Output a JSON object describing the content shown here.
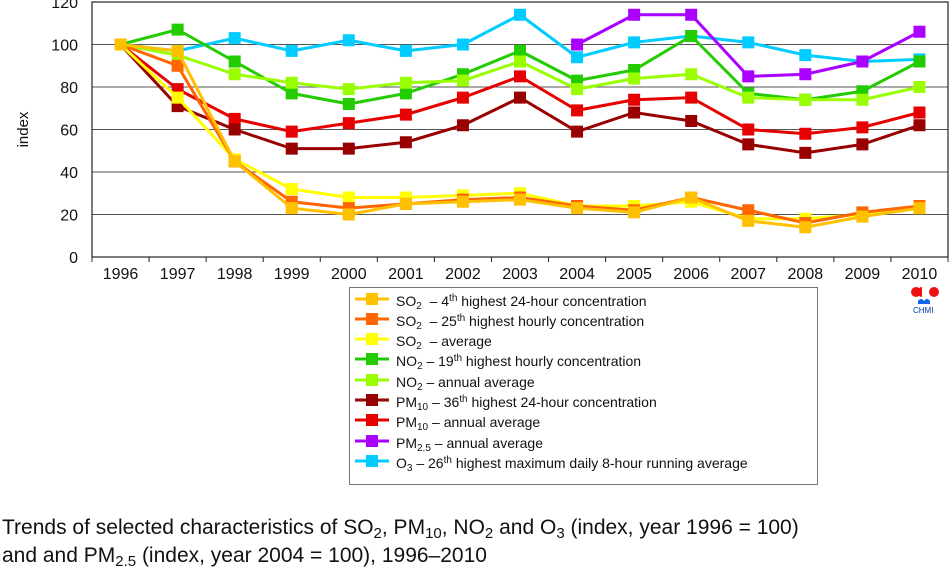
{
  "chart_data": {
    "type": "line",
    "ylabel": "index",
    "xlabel": "",
    "ylim": [
      0,
      120
    ],
    "yticks": [
      "0",
      "20",
      "40",
      "60",
      "80",
      "100",
      "120"
    ],
    "categories": [
      "1996",
      "1997",
      "1998",
      "1999",
      "2000",
      "2001",
      "2002",
      "2003",
      "2004",
      "2005",
      "2006",
      "2007",
      "2008",
      "2009",
      "2010"
    ],
    "grid": "horizontal",
    "legend_position": "bottom",
    "series": [
      {
        "name": "SO2 – 4th highest 24-hour concentration",
        "color": "#FFC000",
        "values": [
          100,
          97,
          45,
          23,
          20,
          25,
          26,
          27,
          23,
          21,
          28,
          17,
          14,
          19,
          23
        ],
        "label": {
          "f": "SO",
          "sub": "2",
          "a": "  – 4",
          "sup": "th",
          "b": " highest 24-hour concentration"
        }
      },
      {
        "name": "SO2 – 25th highest hourly concentration",
        "color": "#FF6600",
        "values": [
          100,
          90,
          45,
          26,
          23,
          25,
          27,
          28,
          24,
          22,
          28,
          22,
          16,
          21,
          24
        ],
        "label": {
          "f": "SO",
          "sub": "2",
          "a": "  – 25",
          "sup": "th",
          "b": " highest hourly concentration"
        }
      },
      {
        "name": "SO2 – average",
        "color": "#FFFF00",
        "values": [
          100,
          75,
          46,
          32,
          28,
          28,
          29,
          30,
          24,
          24,
          26,
          18,
          18,
          20,
          23
        ],
        "label": {
          "f": "SO",
          "sub": "2",
          "a": "  – average",
          "sup": "",
          "b": ""
        }
      },
      {
        "name": "NO2 – 19th highest hourly concentration",
        "color": "#22CC00",
        "values": [
          100,
          107,
          92,
          77,
          72,
          77,
          86,
          97,
          83,
          88,
          104,
          77,
          74,
          78,
          92
        ],
        "label": {
          "f": "NO",
          "sub": "2",
          "a": " – 19",
          "sup": "th",
          "b": " highest hourly concentration"
        }
      },
      {
        "name": "NO2 – annual average",
        "color": "#99FF00",
        "values": [
          100,
          95,
          86,
          82,
          79,
          82,
          83,
          92,
          79,
          84,
          86,
          75,
          74,
          74,
          80
        ],
        "label": {
          "f": "NO",
          "sub": "2",
          "a": " – annual average",
          "sup": "",
          "b": ""
        }
      },
      {
        "name": "PM10 – 36th highest 24-hour concentration",
        "color": "#990000",
        "values": [
          100,
          71,
          60,
          51,
          51,
          54,
          62,
          75,
          59,
          68,
          64,
          53,
          49,
          53,
          62
        ],
        "label": {
          "f": "PM",
          "sub": "10",
          "a": " – 36",
          "sup": "th",
          "b": " highest 24-hour concentration"
        }
      },
      {
        "name": "PM10 – annual average",
        "color": "#E60000",
        "values": [
          100,
          79,
          65,
          59,
          63,
          67,
          75,
          85,
          69,
          74,
          75,
          60,
          58,
          61,
          68
        ],
        "label": {
          "f": "PM",
          "sub": "10",
          "a": " – annual average",
          "sup": "",
          "b": ""
        }
      },
      {
        "name": "PM2.5 – annual average",
        "color": "#AA00FF",
        "values": [
          null,
          null,
          null,
          null,
          null,
          null,
          null,
          null,
          100,
          114,
          114,
          85,
          86,
          92,
          106
        ],
        "label": {
          "f": "PM",
          "sub": "2.5",
          "a": " – annual average",
          "sup": "",
          "b": ""
        }
      },
      {
        "name": "O3 – 26th highest maximum daily 8-hour running average",
        "color": "#00CCFF",
        "values": [
          100,
          97,
          103,
          97,
          102,
          97,
          100,
          114,
          94,
          101,
          104,
          101,
          95,
          92,
          93
        ],
        "label": {
          "f": "O",
          "sub": "3",
          "a": " – 26",
          "sup": "th",
          "b": " highest maximum daily 8-hour running average"
        }
      }
    ]
  },
  "logo": {
    "text": "CHMI"
  },
  "caption": {
    "l1a": "Trends of selected characteristics of SO",
    "l1s1": "2",
    "l1b": ", PM",
    "l1s2": "10",
    "l1c": ", NO",
    "l1s3": "2",
    "l1d": " and O",
    "l1s4": "3",
    "l1e": " (index, year 1996 = 100)",
    "l2a": "and and PM",
    "l2s": "2.5",
    "l2b": " (index, year 2004 = 100), 1996–2010"
  }
}
